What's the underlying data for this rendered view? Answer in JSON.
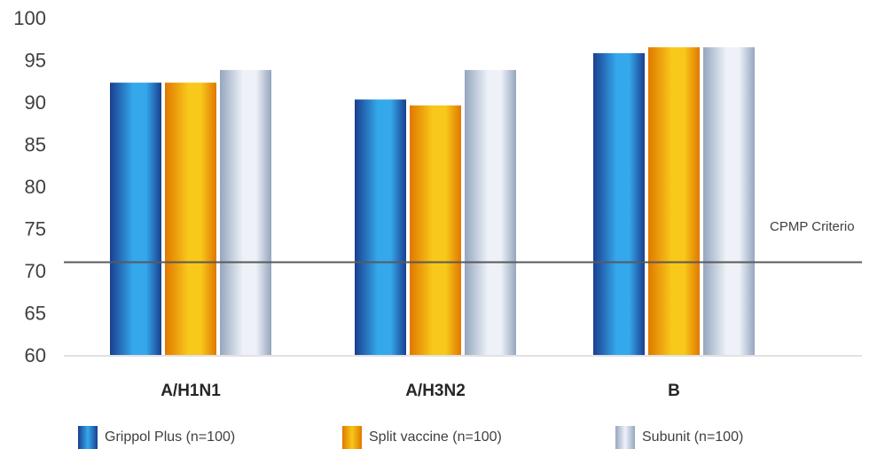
{
  "chart_data": {
    "type": "bar",
    "categories": [
      "A/H1N1",
      "A/H3N2",
      "B"
    ],
    "series": [
      {
        "name": "Grippol Plus (n=100)",
        "values": [
          92.3,
          90.3,
          95.8
        ]
      },
      {
        "name": "Split vaccine (n=100)",
        "values": [
          92.3,
          89.6,
          96.5
        ]
      },
      {
        "name": "Subunit (n=100)",
        "values": [
          93.8,
          93.8,
          96.5
        ]
      }
    ],
    "title": "",
    "xlabel": "",
    "ylabel": "",
    "ylim": [
      60,
      100
    ],
    "yticks": [
      "60",
      "65",
      "70",
      "75",
      "80",
      "85",
      "90",
      "95",
      "100"
    ],
    "grid": false,
    "legend_position": "bottom",
    "reference_line": {
      "value": 71,
      "label": "CPMP Criterio"
    },
    "colors": {
      "series": [
        {
          "dark": "#1a3f8f",
          "light": "#35a8ec"
        },
        {
          "dark": "#e07800",
          "light": "#f8c81a"
        },
        {
          "dark": "#95a6bf",
          "light": "#eef2f8"
        }
      ],
      "axis": "#d9d9d9",
      "reference_line": "#595959"
    }
  }
}
